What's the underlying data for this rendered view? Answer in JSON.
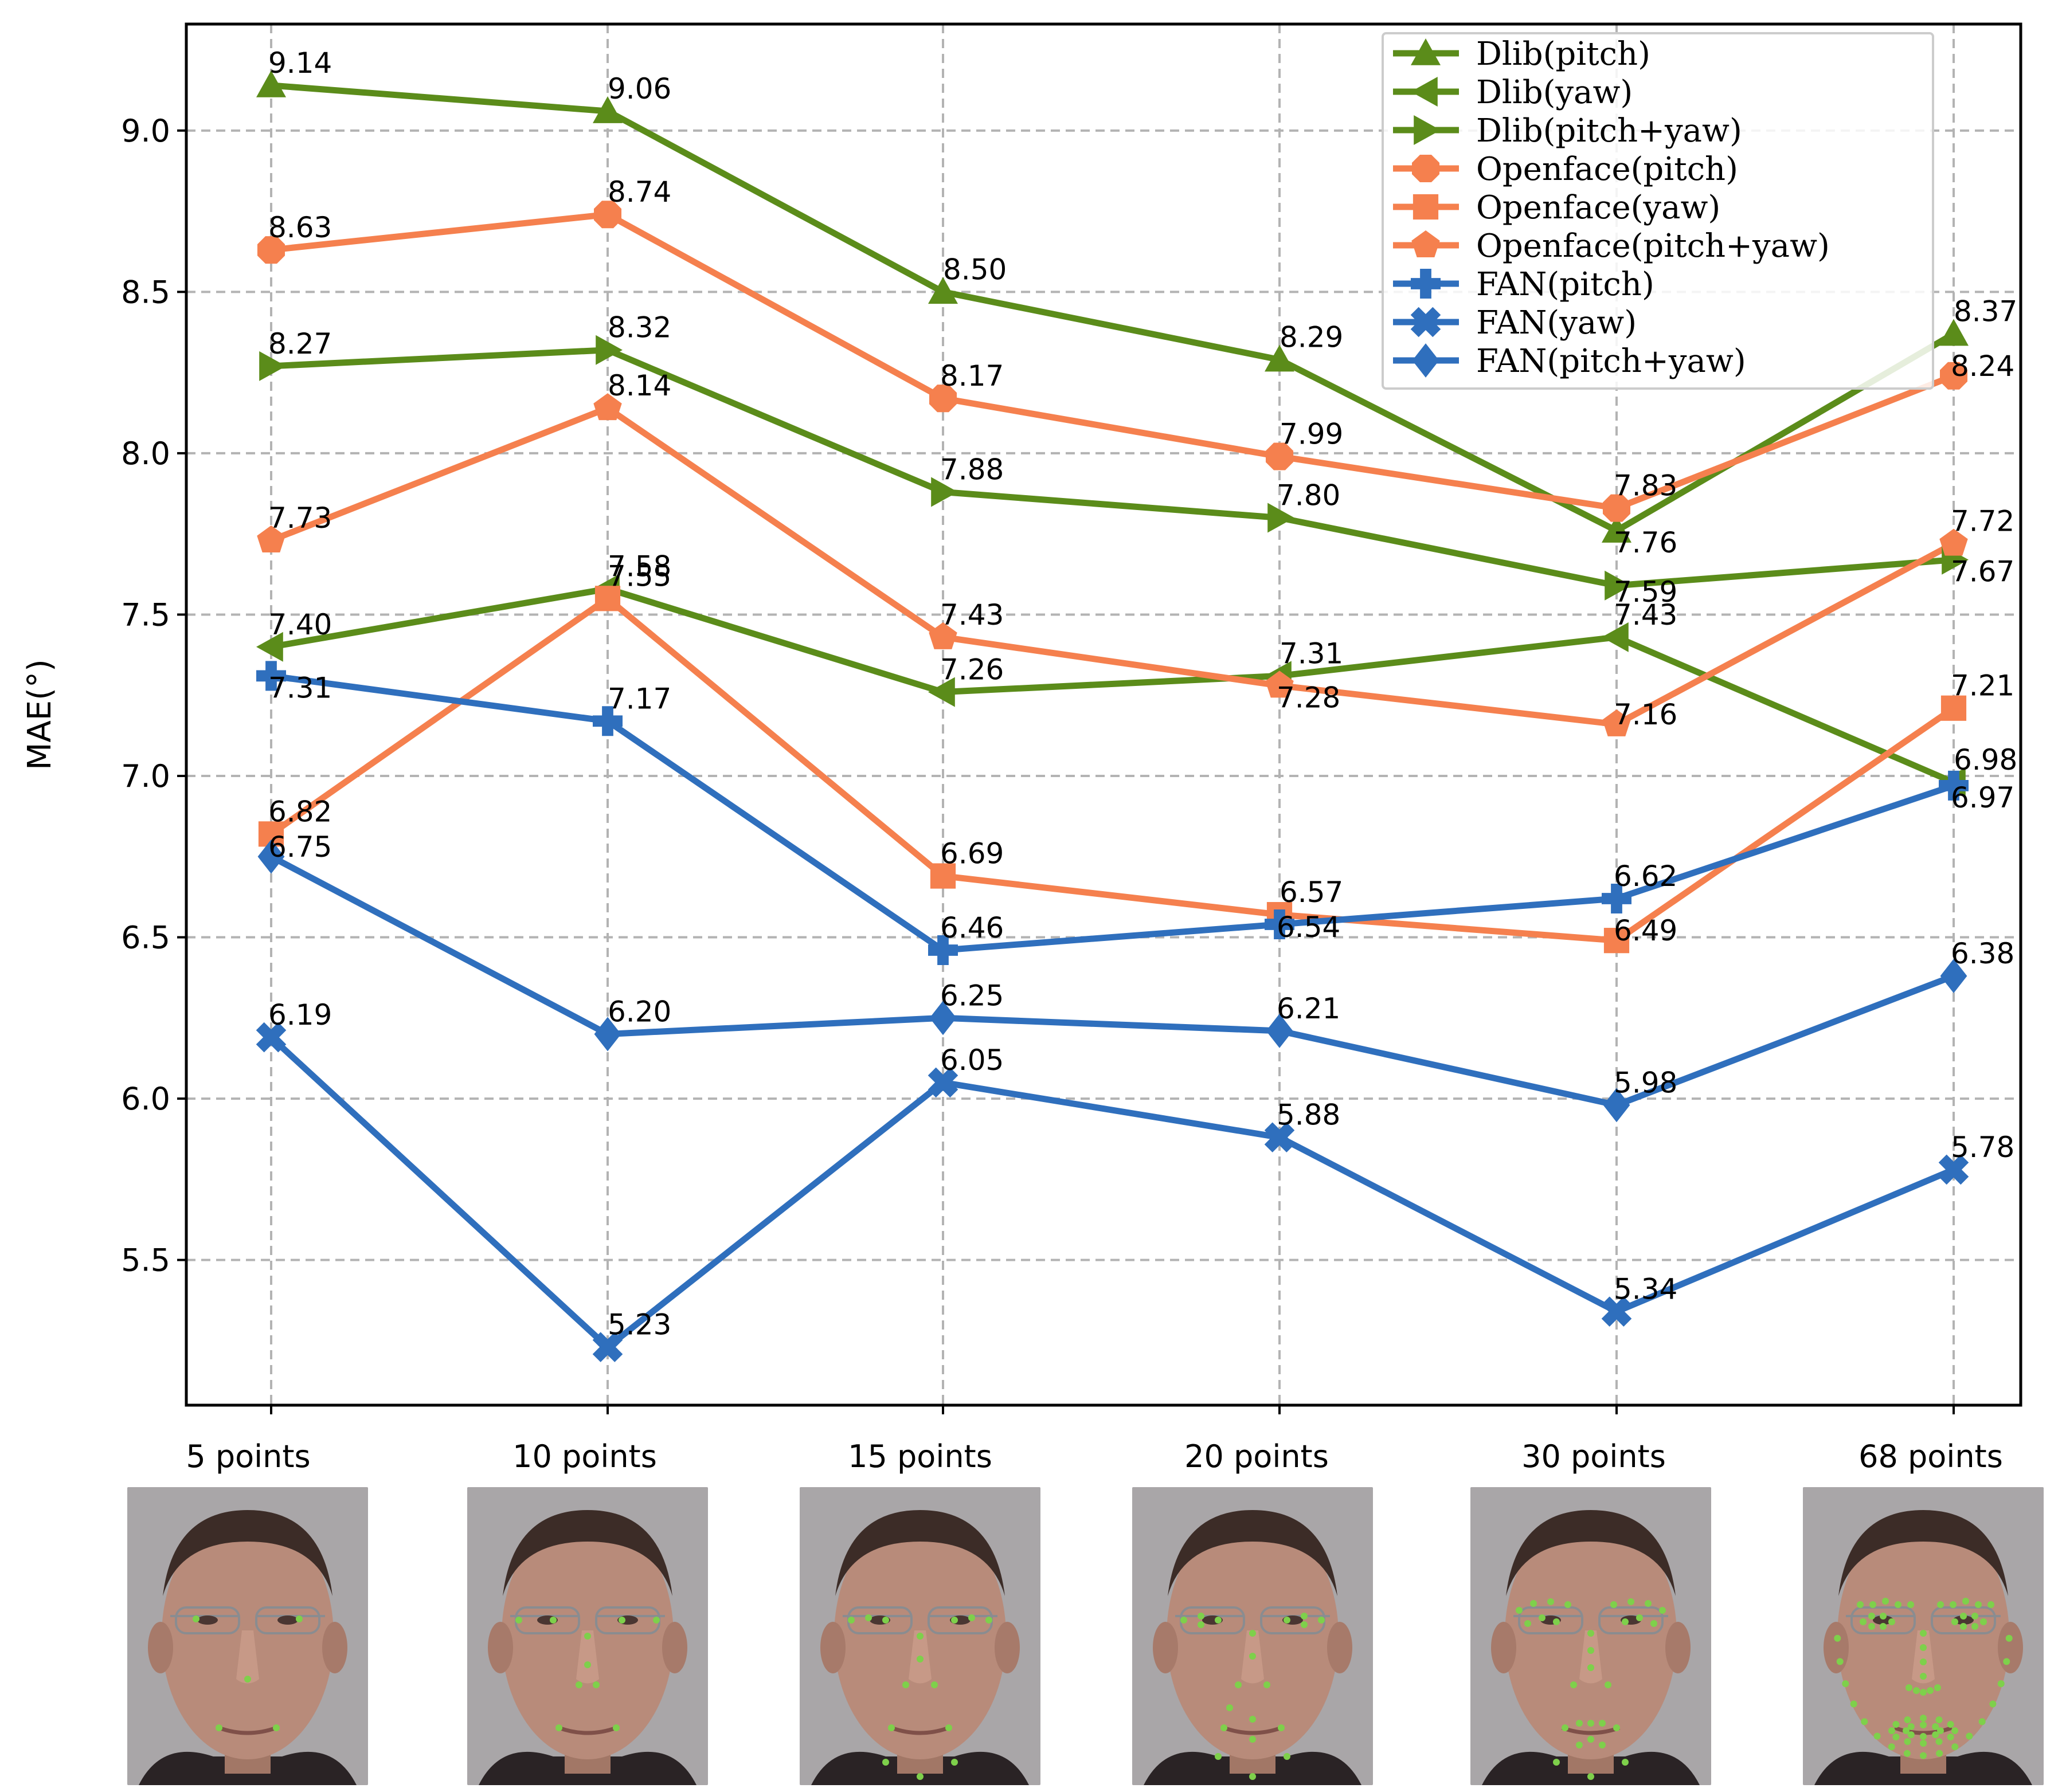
{
  "chart_data": {
    "type": "line",
    "title": "",
    "xlabel": "",
    "ylabel": "MAE(°)",
    "ylim": [
      5.05,
      9.33
    ],
    "yticks": [
      "5.5",
      "6.0",
      "6.5",
      "7.0",
      "7.5",
      "8.0",
      "8.5",
      "9.0"
    ],
    "grid": true,
    "legend_position": "top-right",
    "categories": [
      "5 points",
      "10 points",
      "15 points",
      "20 points",
      "30 points",
      "68 points"
    ],
    "series": [
      {
        "name": "Dlib(pitch)",
        "color": "#5b8c1a",
        "marker": "triangle-up",
        "values": [
          9.14,
          9.06,
          8.5,
          8.29,
          7.76,
          8.37
        ],
        "labels": [
          "9.14",
          "9.06",
          "8.50",
          "8.29",
          "7.76",
          "8.37"
        ]
      },
      {
        "name": "Dlib(yaw)",
        "color": "#5b8c1a",
        "marker": "triangle-left",
        "values": [
          7.4,
          7.58,
          7.26,
          7.31,
          7.43,
          6.98
        ],
        "labels": [
          "7.40",
          "7.58",
          "7.26",
          "7.31",
          "7.43",
          "6.98"
        ]
      },
      {
        "name": "Dlib(pitch+yaw)",
        "color": "#5b8c1a",
        "marker": "triangle-right",
        "values": [
          8.27,
          8.32,
          7.88,
          7.8,
          7.59,
          7.67
        ],
        "labels": [
          "8.27",
          "8.32",
          "7.88",
          "7.80",
          "7.59",
          "7.67"
        ]
      },
      {
        "name": "Openface(pitch)",
        "color": "#f5804e",
        "marker": "octagon",
        "values": [
          8.63,
          8.74,
          8.17,
          7.99,
          7.83,
          8.24
        ],
        "labels": [
          "8.63",
          "8.74",
          "8.17",
          "7.99",
          "7.83",
          "8.24"
        ]
      },
      {
        "name": "Openface(yaw)",
        "color": "#f5804e",
        "marker": "square",
        "values": [
          6.82,
          7.55,
          6.69,
          6.57,
          6.49,
          7.21
        ],
        "labels": [
          "6.82",
          "7.55",
          "6.69",
          "6.57",
          "6.49",
          "7.21"
        ]
      },
      {
        "name": "Openface(pitch+yaw)",
        "color": "#f5804e",
        "marker": "pentagon",
        "values": [
          7.73,
          8.14,
          7.43,
          7.28,
          7.16,
          7.72
        ],
        "labels": [
          "7.73",
          "8.14",
          "7.43",
          "7.28",
          "7.16",
          "7.72"
        ]
      },
      {
        "name": "FAN(pitch)",
        "color": "#2f6fbd",
        "marker": "plus",
        "values": [
          7.31,
          7.17,
          6.46,
          6.54,
          6.62,
          6.97
        ],
        "labels": [
          "7.31",
          "7.17",
          "6.46",
          "6.54",
          "6.62",
          "6.97"
        ]
      },
      {
        "name": "FAN(yaw)",
        "color": "#2f6fbd",
        "marker": "x",
        "values": [
          6.19,
          5.23,
          6.05,
          5.88,
          5.34,
          5.78
        ],
        "labels": [
          "6.19",
          "5.23",
          "6.05",
          "5.88",
          "5.34",
          "5.78"
        ]
      },
      {
        "name": "FAN(pitch+yaw)",
        "color": "#2f6fbd",
        "marker": "diamond",
        "values": [
          6.75,
          6.2,
          6.25,
          6.21,
          5.98,
          6.38
        ],
        "labels": [
          "6.75",
          "6.20",
          "6.25",
          "6.21",
          "5.98",
          "6.38"
        ]
      }
    ]
  },
  "face_photos": [
    {
      "caption": "5 points",
      "landmarks": 5
    },
    {
      "caption": "10 points",
      "landmarks": 10
    },
    {
      "caption": "15 points",
      "landmarks": 15
    },
    {
      "caption": "20 points",
      "landmarks": 20
    },
    {
      "caption": "30 points",
      "landmarks": 30
    },
    {
      "caption": "68 points",
      "landmarks": 68
    }
  ],
  "colors": {
    "landmark_dot": "#7ed04b",
    "background": "#a9a6a8",
    "skin": "#b88b7a"
  }
}
